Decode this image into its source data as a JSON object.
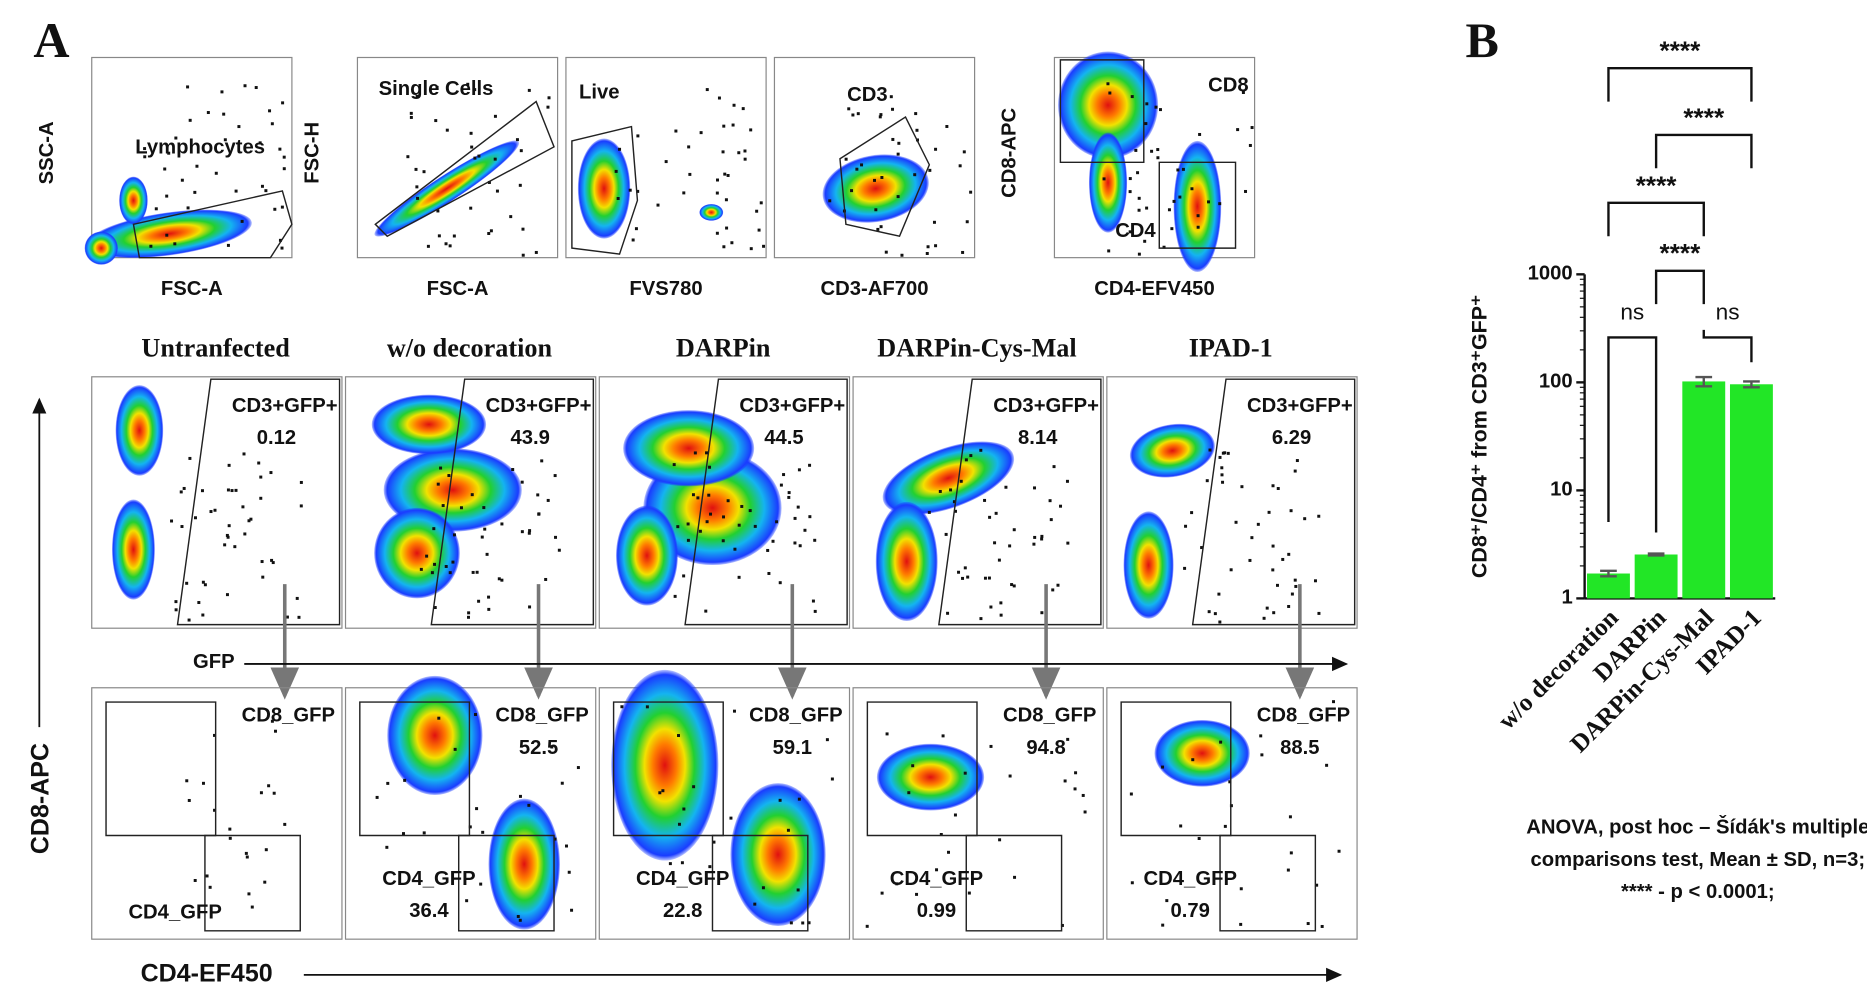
{
  "panel_a": {
    "label": "A",
    "gating": [
      {
        "y_label": "SSC-A",
        "x_label": "FSC-A",
        "gates": [
          "Lymphocytes"
        ]
      },
      {
        "y_label": "FSC-H",
        "x_label": "FSC-A",
        "gates": [
          "Single Cells"
        ]
      },
      {
        "x_label": "FVS780",
        "gates": [
          "Live"
        ]
      },
      {
        "x_label": "CD3-AF700",
        "gates": [
          "CD3"
        ]
      },
      {
        "y_label": "CD8-APC",
        "x_label": "CD4-EFV450",
        "gates": [
          "CD8",
          "CD4"
        ]
      }
    ],
    "samples": [
      {
        "title": "Untranfected",
        "gfp_gate": "CD3+GFP+",
        "gfp_value": 0.12,
        "cd8_gate": "CD8_GFP",
        "cd4_gate": "CD4_GFP"
      },
      {
        "title": "w/o decoration",
        "gfp_gate": "CD3+GFP+",
        "gfp_value": 43.9,
        "cd8_gate": "CD8_GFP",
        "cd8_value": 52.5,
        "cd4_gate": "CD4_GFP",
        "cd4_value": 36.4
      },
      {
        "title": "DARPin",
        "gfp_gate": "CD3+GFP+",
        "gfp_value": 44.5,
        "cd8_gate": "CD8_GFP",
        "cd8_value": 59.1,
        "cd4_gate": "CD4_GFP",
        "cd4_value": 22.8
      },
      {
        "title": "DARPin-Cys-Mal",
        "gfp_gate": "CD3+GFP+",
        "gfp_value": 8.14,
        "cd8_gate": "CD8_GFP",
        "cd8_value": 94.8,
        "cd4_gate": "CD4_GFP",
        "cd4_value": 0.99
      },
      {
        "title": "IPAD-1",
        "gfp_gate": "CD3+GFP+",
        "gfp_value": 6.29,
        "cd8_gate": "CD8_GFP",
        "cd8_value": 88.5,
        "cd4_gate": "CD4_GFP",
        "cd4_value": 0.79
      }
    ],
    "gfp_axis": "GFP",
    "y_axis": "CD8-APC",
    "x_axis": "CD4-EF450"
  },
  "chart_data": {
    "type": "bar",
    "panel_label": "B",
    "y_label": "CD8⁺/CD4⁺ from CD3⁺GFP⁺",
    "categories": [
      "w/o decoration",
      "DARPin",
      "DARPin-Cys-Mal",
      "IPAD-1"
    ],
    "values": [
      1.7,
      2.55,
      102,
      96
    ],
    "errors": [
      0.1,
      0.05,
      10,
      6
    ],
    "color": "#22e626",
    "log_scale": true,
    "ylim": [
      1,
      1000
    ],
    "yticks": [
      1,
      10,
      100,
      1000
    ],
    "comparisons": [
      {
        "groups": [
          "w/o decoration",
          "IPAD-1"
        ],
        "label": "****"
      },
      {
        "groups": [
          "DARPin",
          "IPAD-1"
        ],
        "label": "****"
      },
      {
        "groups": [
          "w/o decoration",
          "DARPin-Cys-Mal"
        ],
        "label": "****"
      },
      {
        "groups": [
          "DARPin",
          "DARPin-Cys-Mal"
        ],
        "label": "****"
      },
      {
        "groups": [
          "w/o decoration",
          "DARPin"
        ],
        "label": "ns"
      },
      {
        "groups": [
          "DARPin-Cys-Mal",
          "IPAD-1"
        ],
        "label": "ns"
      }
    ]
  },
  "footnote": [
    "ANOVA, post hoc – Šídák's multiple",
    "comparisons test, Mean ± SD, n=3;",
    "**** - p < 0.0001;"
  ]
}
